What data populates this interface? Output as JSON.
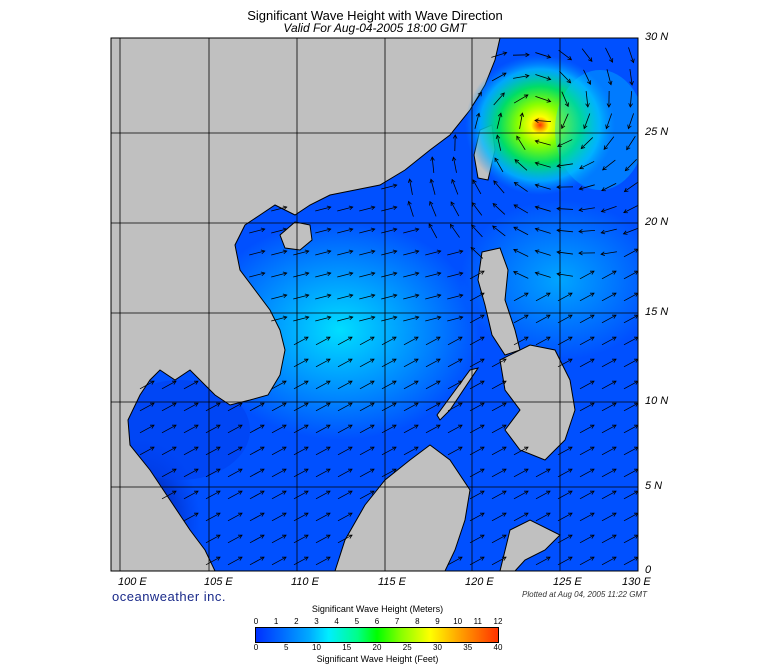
{
  "title": "Significant Wave Height with Wave Direction",
  "subtitle": "Valid For Aug-04-2005 18:00 GMT",
  "brand": "oceanweather inc.",
  "plotted": "Plotted at Aug 04, 2005 11:22 GMT",
  "lat_ticks": [
    "30 N",
    "25 N",
    "20 N",
    "15 N",
    "10 N",
    "5 N",
    "0"
  ],
  "lon_ticks": [
    "100 E",
    "105 E",
    "110 E",
    "115 E",
    "120 E",
    "125 E",
    "130 E"
  ],
  "colorbar": {
    "title_meters": "Significant Wave Height (Meters)",
    "title_feet": "Significant Wave Height (Feet)",
    "meters": [
      "0",
      "1",
      "2",
      "3",
      "4",
      "5",
      "6",
      "7",
      "8",
      "9",
      "10",
      "11",
      "12"
    ],
    "feet": [
      "0",
      "5",
      "10",
      "15",
      "20",
      "25",
      "30",
      "35",
      "40"
    ]
  },
  "colors": {
    "land": "#c0c0c0",
    "sea_low": "#0030ff",
    "sea_mid": "#00bbff",
    "storm": "#ffff00"
  },
  "chart_data": {
    "type": "heatmap",
    "lon_range": [
      99,
      130
    ],
    "lat_range": [
      0,
      30
    ],
    "storm_center": {
      "lon": 124,
      "lat": 25.5
    }
  }
}
